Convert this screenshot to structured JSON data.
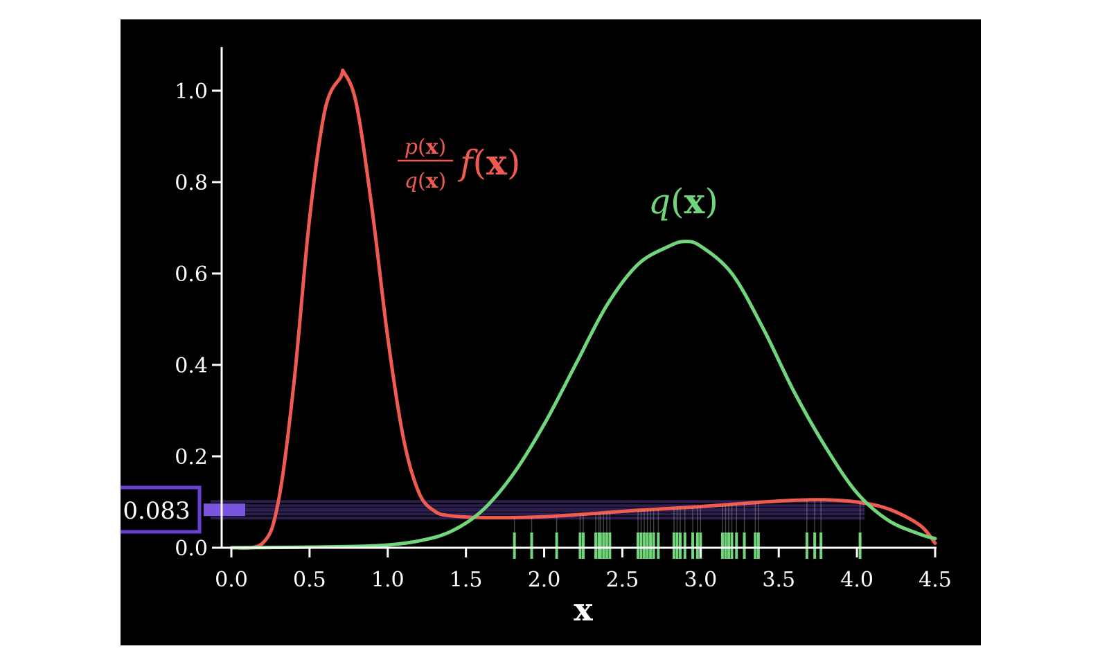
{
  "colors": {
    "background": "#000000",
    "axis": "#ffffff",
    "weighted_curve": "#ef5b50",
    "q_curve": "#71d67b",
    "samples": "#71d67b",
    "estimate": "#7b55e0"
  },
  "chart_data": {
    "type": "line",
    "xlabel": "x",
    "ylabel": "",
    "xlim": [
      0.0,
      4.5
    ],
    "ylim": [
      0.0,
      1.0
    ],
    "x_ticks": [
      "0.0",
      "0.5",
      "1.0",
      "1.5",
      "2.0",
      "2.5",
      "3.0",
      "3.5",
      "4.0",
      "4.5"
    ],
    "y_ticks": [
      "0.0",
      "0.2",
      "0.4",
      "0.6",
      "0.8",
      "1.0"
    ],
    "series": [
      {
        "key": "weighted",
        "color": "#ef5b50",
        "x": [
          0.0,
          0.2,
          0.3,
          0.4,
          0.5,
          0.6,
          0.7,
          0.72,
          0.8,
          0.9,
          1.0,
          1.1,
          1.2,
          1.3,
          1.4,
          1.6,
          1.8,
          2.0,
          2.2,
          2.4,
          2.6,
          2.8,
          3.0,
          3.2,
          3.4,
          3.6,
          3.8,
          4.0,
          4.2,
          4.4,
          4.5
        ],
        "y": [
          0.0,
          0.01,
          0.1,
          0.36,
          0.72,
          0.96,
          1.03,
          1.04,
          0.97,
          0.74,
          0.46,
          0.24,
          0.12,
          0.08,
          0.07,
          0.066,
          0.066,
          0.068,
          0.072,
          0.077,
          0.082,
          0.086,
          0.09,
          0.095,
          0.1,
          0.104,
          0.105,
          0.1,
          0.085,
          0.05,
          0.01
        ]
      },
      {
        "key": "q",
        "color": "#71d67b",
        "x": [
          0.0,
          0.4,
          0.8,
          1.0,
          1.2,
          1.4,
          1.6,
          1.8,
          2.0,
          2.2,
          2.4,
          2.6,
          2.8,
          2.9,
          3.0,
          3.2,
          3.4,
          3.6,
          3.8,
          4.0,
          4.2,
          4.4,
          4.5
        ],
        "y": [
          0.0,
          0.001,
          0.003,
          0.006,
          0.015,
          0.035,
          0.08,
          0.16,
          0.27,
          0.4,
          0.53,
          0.62,
          0.66,
          0.67,
          0.66,
          0.6,
          0.48,
          0.34,
          0.22,
          0.12,
          0.06,
          0.03,
          0.02
        ]
      }
    ],
    "samples": [
      1.81,
      1.92,
      2.08,
      2.23,
      2.25,
      2.33,
      2.35,
      2.36,
      2.38,
      2.4,
      2.42,
      2.6,
      2.62,
      2.64,
      2.66,
      2.68,
      2.7,
      2.73,
      2.83,
      2.85,
      2.87,
      2.9,
      2.95,
      2.98,
      3.0,
      3.14,
      3.16,
      3.18,
      3.2,
      3.23,
      3.28,
      3.35,
      3.37,
      3.68,
      3.73,
      3.77,
      4.02
    ],
    "estimate": 0.083,
    "annotations": {
      "q_label_italic": "q",
      "q_label_bold": "x",
      "weight_num_italic": "p",
      "weight_num_bold": "x",
      "weight_den_italic": "q",
      "weight_den_bold": "x",
      "weight_f_italic": "f",
      "weight_f_bold": "x"
    }
  }
}
